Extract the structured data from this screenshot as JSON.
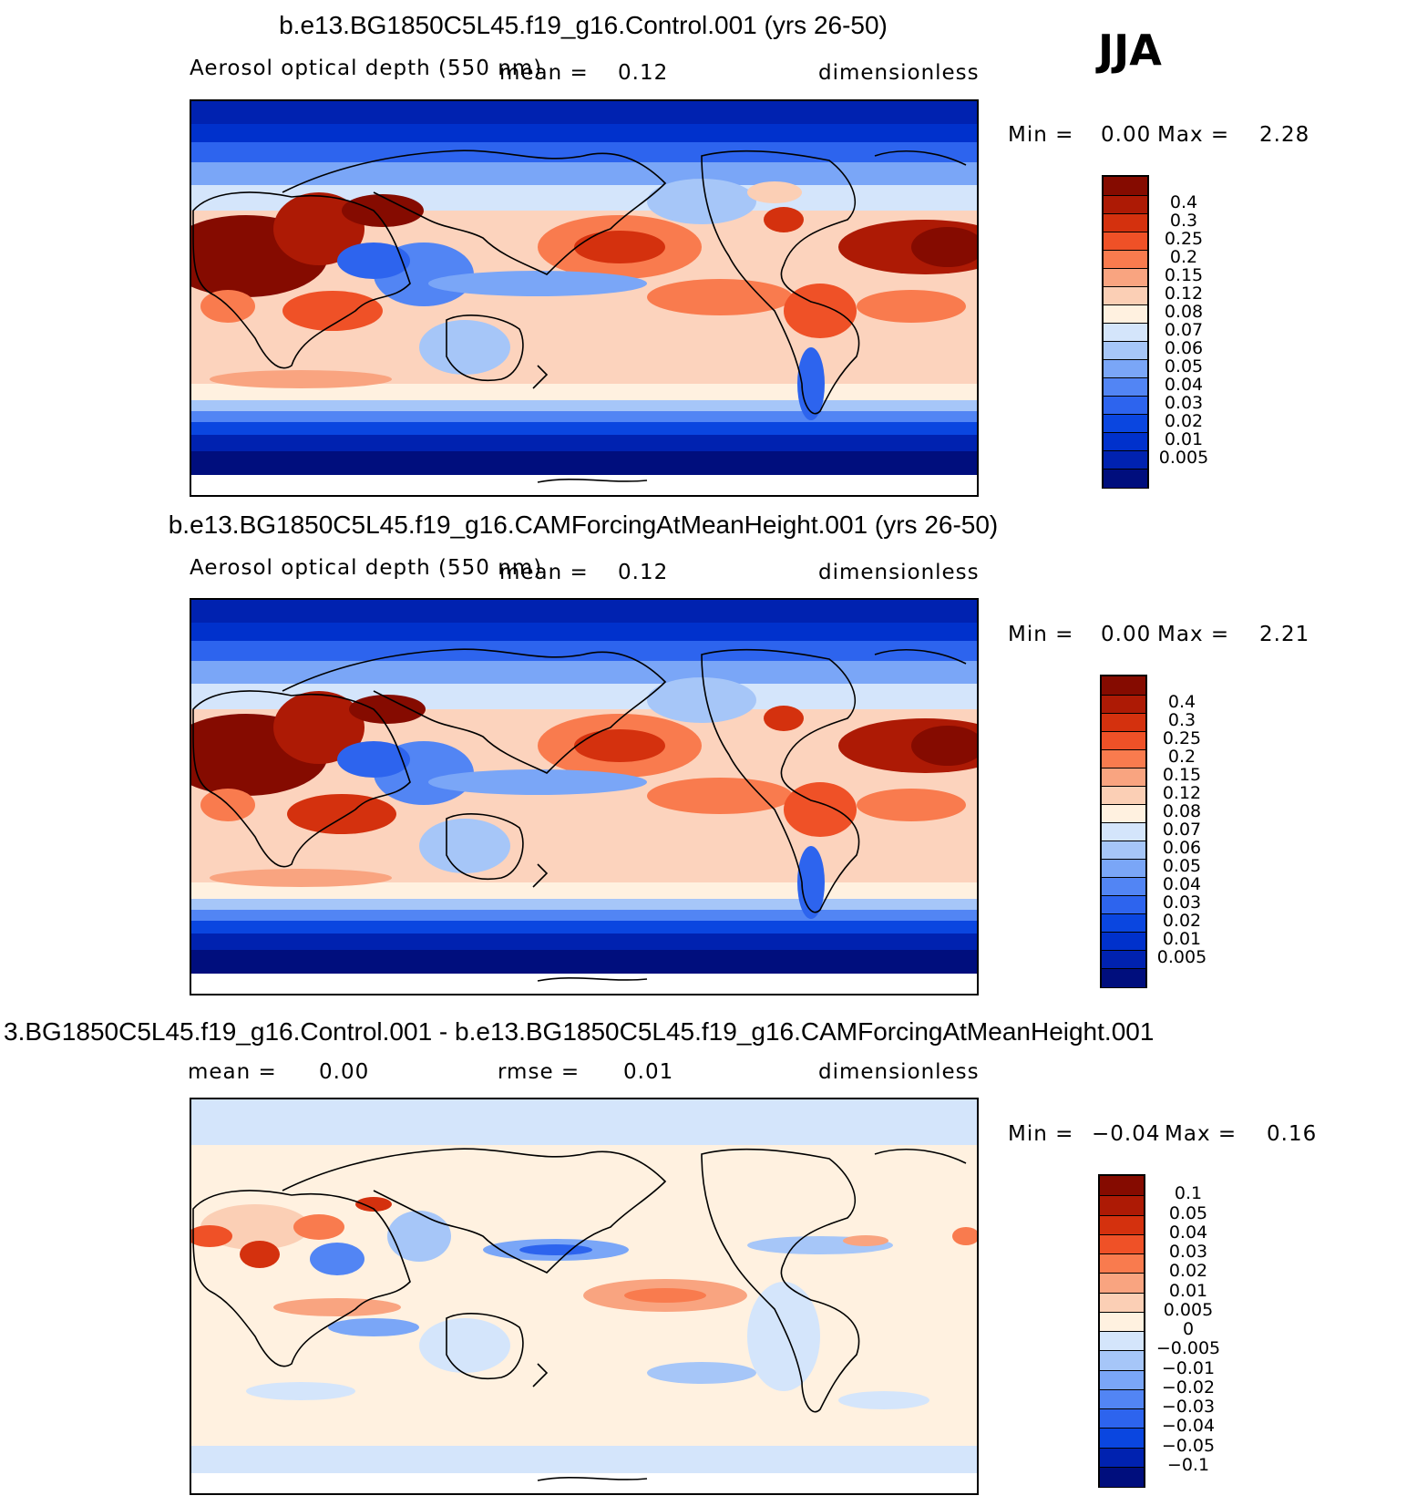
{
  "season": "JJA",
  "colors": {
    "standard": [
      "#000e7d",
      "#0022b0",
      "#0031cc",
      "#0a46e0",
      "#2d64ee",
      "#5285f4",
      "#7aa6f7",
      "#a6c6f8",
      "#d4e5fb",
      "#fff1e0",
      "#fbcfb5",
      "#f9a480",
      "#f97b4e",
      "#ef5127",
      "#d4310e",
      "#ad1a05",
      "#850b00"
    ],
    "difference": [
      "#000e7d",
      "#0022b0",
      "#0a46e0",
      "#2d64ee",
      "#5285f4",
      "#7aa6f7",
      "#a6c6f8",
      "#d4e5fb",
      "#fff1e0",
      "#fbcfb5",
      "#f9a480",
      "#f97b4e",
      "#ef5127",
      "#d4310e",
      "#ad1a05",
      "#850b00"
    ]
  },
  "panels": [
    {
      "id": "control",
      "title": "b.e13.BG1850C5L45.f19_g16.Control.001 (yrs 26-50)",
      "left_label": "Aerosol optical depth (550 nm)",
      "mid_label": "mean =",
      "mid_value": "0.12",
      "right_label": "dimensionless",
      "min_label": "Min =",
      "min_value": "0.00",
      "max_label": "Max =",
      "max_value": "2.28",
      "levels": [
        "0.4",
        "0.3",
        "0.25",
        "0.2",
        "0.15",
        "0.12",
        "0.08",
        "0.07",
        "0.06",
        "0.05",
        "0.04",
        "0.03",
        "0.02",
        "0.01",
        "0.005"
      ]
    },
    {
      "id": "test",
      "title": "b.e13.BG1850C5L45.f19_g16.CAMForcingAtMeanHeight.001 (yrs 26-50)",
      "left_label": "Aerosol optical depth (550 nm)",
      "mid_label": "mean =",
      "mid_value": "0.12",
      "right_label": "dimensionless",
      "min_label": "Min =",
      "min_value": "0.00",
      "max_label": "Max =",
      "max_value": "2.21",
      "levels": [
        "0.4",
        "0.3",
        "0.25",
        "0.2",
        "0.15",
        "0.12",
        "0.08",
        "0.07",
        "0.06",
        "0.05",
        "0.04",
        "0.03",
        "0.02",
        "0.01",
        "0.005"
      ]
    },
    {
      "id": "diff",
      "title": "3.BG1850C5L45.f19_g16.Control.001 - b.e13.BG1850C5L45.f19_g16.CAMForcingAtMeanHeight.001",
      "left_label": "mean =",
      "left_value": "0.00",
      "mid_label": "rmse =",
      "mid_value": "0.01",
      "right_label": "dimensionless",
      "min_label": "Min =",
      "min_value": "−0.04",
      "max_label": "Max =",
      "max_value": "0.16",
      "levels": [
        "0.1",
        "0.05",
        "0.04",
        "0.03",
        "0.02",
        "0.01",
        "0.005",
        "0",
        "−0.005",
        "−0.01",
        "−0.02",
        "−0.03",
        "−0.04",
        "−0.05",
        "−0.1"
      ]
    }
  ],
  "chart_data": [
    {
      "type": "heatmap",
      "title": "b.e13.BG1850C5L45.f19_g16.Control.001 (yrs 26-50)",
      "variable": "Aerosol optical depth (550 nm)",
      "units": "dimensionless",
      "season": "JJA",
      "mean": 0.12,
      "min": 0.0,
      "max": 2.28,
      "contour_levels": [
        0.005,
        0.01,
        0.02,
        0.03,
        0.04,
        0.05,
        0.06,
        0.07,
        0.08,
        0.12,
        0.15,
        0.2,
        0.25,
        0.3,
        0.4
      ]
    },
    {
      "type": "heatmap",
      "title": "b.e13.BG1850C5L45.f19_g16.CAMForcingAtMeanHeight.001 (yrs 26-50)",
      "variable": "Aerosol optical depth (550 nm)",
      "units": "dimensionless",
      "season": "JJA",
      "mean": 0.12,
      "min": 0.0,
      "max": 2.21,
      "contour_levels": [
        0.005,
        0.01,
        0.02,
        0.03,
        0.04,
        0.05,
        0.06,
        0.07,
        0.08,
        0.12,
        0.15,
        0.2,
        0.25,
        0.3,
        0.4
      ]
    },
    {
      "type": "heatmap",
      "title": "3.BG1850C5L45.f19_g16.Control.001 - b.e13.BG1850C5L45.f19_g16.CAMForcingAtMeanHeight.001",
      "units": "dimensionless",
      "season": "JJA",
      "mean": 0.0,
      "rmse": 0.01,
      "min": -0.04,
      "max": 0.16,
      "contour_levels": [
        -0.1,
        -0.05,
        -0.04,
        -0.03,
        -0.02,
        -0.01,
        -0.005,
        0,
        0.005,
        0.01,
        0.02,
        0.03,
        0.04,
        0.05,
        0.1
      ]
    }
  ]
}
